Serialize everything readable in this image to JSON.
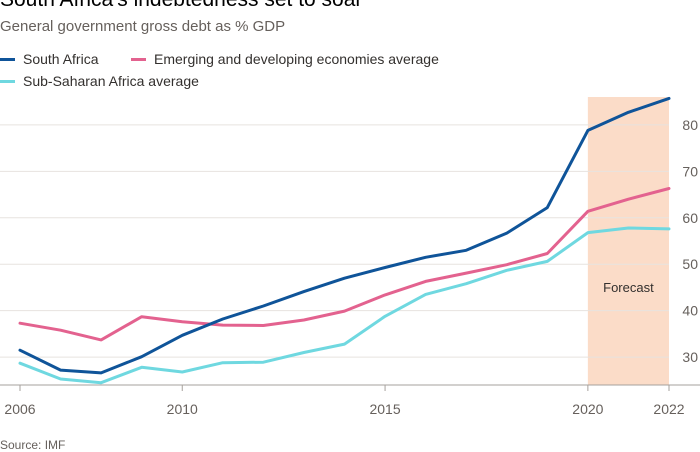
{
  "header": {
    "title": "South Africa's indebtedness set to soar",
    "subtitle": "General government gross debt as % GDP",
    "source": "Source: IMF"
  },
  "chart_data": {
    "type": "line",
    "title": "South Africa's indebtedness set to soar",
    "subtitle": "General government gross debt as % GDP",
    "xlabel": "",
    "ylabel": "",
    "x": [
      2006,
      2007,
      2008,
      2009,
      2010,
      2011,
      2012,
      2013,
      2014,
      2015,
      2016,
      2017,
      2018,
      2019,
      2020,
      2021,
      2022
    ],
    "xticks": [
      2006,
      2010,
      2015,
      2020,
      2022
    ],
    "yticks": [
      30,
      40,
      50,
      60,
      70,
      80
    ],
    "xlim": [
      2006,
      2022
    ],
    "ylim": [
      24,
      86
    ],
    "grid": true,
    "legend_position": "top-left",
    "forecast": {
      "start": 2020,
      "end": 2022,
      "label": "Forecast",
      "color": "#fbdcc8"
    },
    "series": [
      {
        "name": "South Africa",
        "color": "#0f5499",
        "values": [
          31.5,
          27.2,
          26.6,
          30.1,
          34.7,
          38.2,
          41.0,
          44.1,
          47.0,
          49.3,
          51.5,
          53.0,
          56.7,
          62.2,
          78.8,
          82.7,
          85.7
        ]
      },
      {
        "name": "Emerging and developing economies average",
        "color": "#e3628f",
        "values": [
          37.3,
          35.8,
          33.7,
          38.7,
          37.6,
          36.9,
          36.8,
          38.0,
          39.9,
          43.4,
          46.3,
          48.1,
          49.9,
          52.3,
          61.4,
          64.0,
          66.3
        ]
      },
      {
        "name": "Sub-Saharan Africa average",
        "color": "#6fd8e0",
        "values": [
          28.7,
          25.3,
          24.5,
          27.8,
          26.8,
          28.8,
          28.9,
          31.0,
          32.8,
          38.8,
          43.5,
          45.8,
          48.7,
          50.6,
          56.8,
          57.8,
          57.6
        ]
      }
    ]
  }
}
